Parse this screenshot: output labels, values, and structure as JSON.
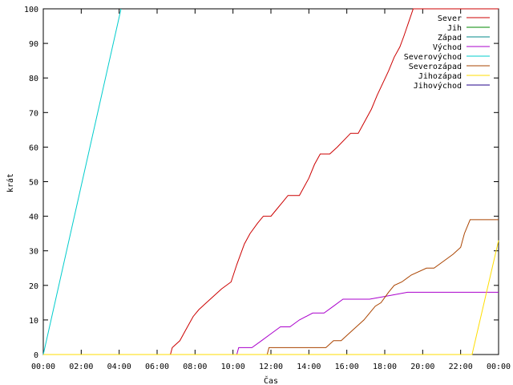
{
  "chart_data": {
    "type": "line",
    "title": "",
    "xlabel": "Čas",
    "ylabel": "krát",
    "xlim": [
      0,
      24
    ],
    "ylim": [
      0,
      100
    ],
    "grid": false,
    "legend_position": "top-right",
    "x_ticks": [
      {
        "value": 0,
        "label": "00:00"
      },
      {
        "value": 2,
        "label": "02:00"
      },
      {
        "value": 4,
        "label": "04:00"
      },
      {
        "value": 6,
        "label": "06:00"
      },
      {
        "value": 8,
        "label": "08:00"
      },
      {
        "value": 10,
        "label": "10:00"
      },
      {
        "value": 12,
        "label": "12:00"
      },
      {
        "value": 14,
        "label": "14:00"
      },
      {
        "value": 16,
        "label": "16:00"
      },
      {
        "value": 18,
        "label": "18:00"
      },
      {
        "value": 20,
        "label": "20:00"
      },
      {
        "value": 22,
        "label": "22:00"
      },
      {
        "value": 24,
        "label": "00:00"
      }
    ],
    "y_ticks": [
      {
        "value": 0,
        "label": "0"
      },
      {
        "value": 10,
        "label": "10"
      },
      {
        "value": 20,
        "label": "20"
      },
      {
        "value": 30,
        "label": "30"
      },
      {
        "value": 40,
        "label": "40"
      },
      {
        "value": 50,
        "label": "50"
      },
      {
        "value": 60,
        "label": "60"
      },
      {
        "value": 70,
        "label": "70"
      },
      {
        "value": 80,
        "label": "80"
      },
      {
        "value": 90,
        "label": "90"
      },
      {
        "value": 100,
        "label": "100"
      }
    ],
    "series": [
      {
        "name": "Sever",
        "color": "#cc0000",
        "x": [
          0,
          6.7,
          6.8,
          7.2,
          7.5,
          7.9,
          8.2,
          8.6,
          9.0,
          9.4,
          9.9,
          10.2,
          10.6,
          10.9,
          11.3,
          11.6,
          12.0,
          12.3,
          12.6,
          12.9,
          13.5,
          13.8,
          14.0,
          14.3,
          14.6,
          15.1,
          15.5,
          16.2,
          16.6,
          16.9,
          17.3,
          17.6,
          18.2,
          18.5,
          18.8,
          19.0,
          19.5,
          24
        ],
        "y": [
          0,
          0,
          2,
          4,
          7,
          11,
          13,
          15,
          17,
          19,
          21,
          26,
          32,
          35,
          38,
          40,
          40,
          42,
          44,
          46,
          46,
          49,
          51,
          55,
          58,
          58,
          60,
          64,
          64,
          67,
          71,
          75,
          82,
          86,
          89,
          92,
          100,
          100
        ]
      },
      {
        "name": "Jih",
        "color": "#008800",
        "x": [],
        "y": []
      },
      {
        "name": "Západ",
        "color": "#008888",
        "x": [],
        "y": []
      },
      {
        "name": "Východ",
        "color": "#aa00cc",
        "x": [
          0,
          10.2,
          10.3,
          11.0,
          11.5,
          12.0,
          12.5,
          13.0,
          13.5,
          14.2,
          14.8,
          15.3,
          15.8,
          16.5,
          17.2,
          18.2,
          19.2,
          24
        ],
        "y": [
          0,
          0,
          2,
          2,
          4,
          6,
          8,
          8,
          10,
          12,
          12,
          14,
          16,
          16,
          16,
          17,
          18,
          18
        ]
      },
      {
        "name": "Severovýchod",
        "color": "#00cccc",
        "x": [
          0,
          4.1
        ],
        "y": [
          0,
          100
        ]
      },
      {
        "name": "Severozápad",
        "color": "#aa4400",
        "x": [
          0,
          11.8,
          11.9,
          14.9,
          15.3,
          15.7,
          16.1,
          16.5,
          16.9,
          17.2,
          17.5,
          17.8,
          18.2,
          18.5,
          18.9,
          19.4,
          20.2,
          20.6,
          21.1,
          21.6,
          22.0,
          22.2,
          22.5,
          23.2,
          24
        ],
        "y": [
          0,
          0,
          2,
          2,
          4,
          4,
          6,
          8,
          10,
          12,
          14,
          15,
          18,
          20,
          21,
          23,
          25,
          25,
          27,
          29,
          31,
          35,
          39,
          39,
          39
        ]
      },
      {
        "name": "Jihozápad",
        "color": "#ffdd00",
        "x": [
          0,
          22.6,
          24
        ],
        "y": [
          0,
          0,
          33
        ]
      },
      {
        "name": "Jihovýchod",
        "color": "#220088",
        "x": [],
        "y": []
      }
    ]
  }
}
